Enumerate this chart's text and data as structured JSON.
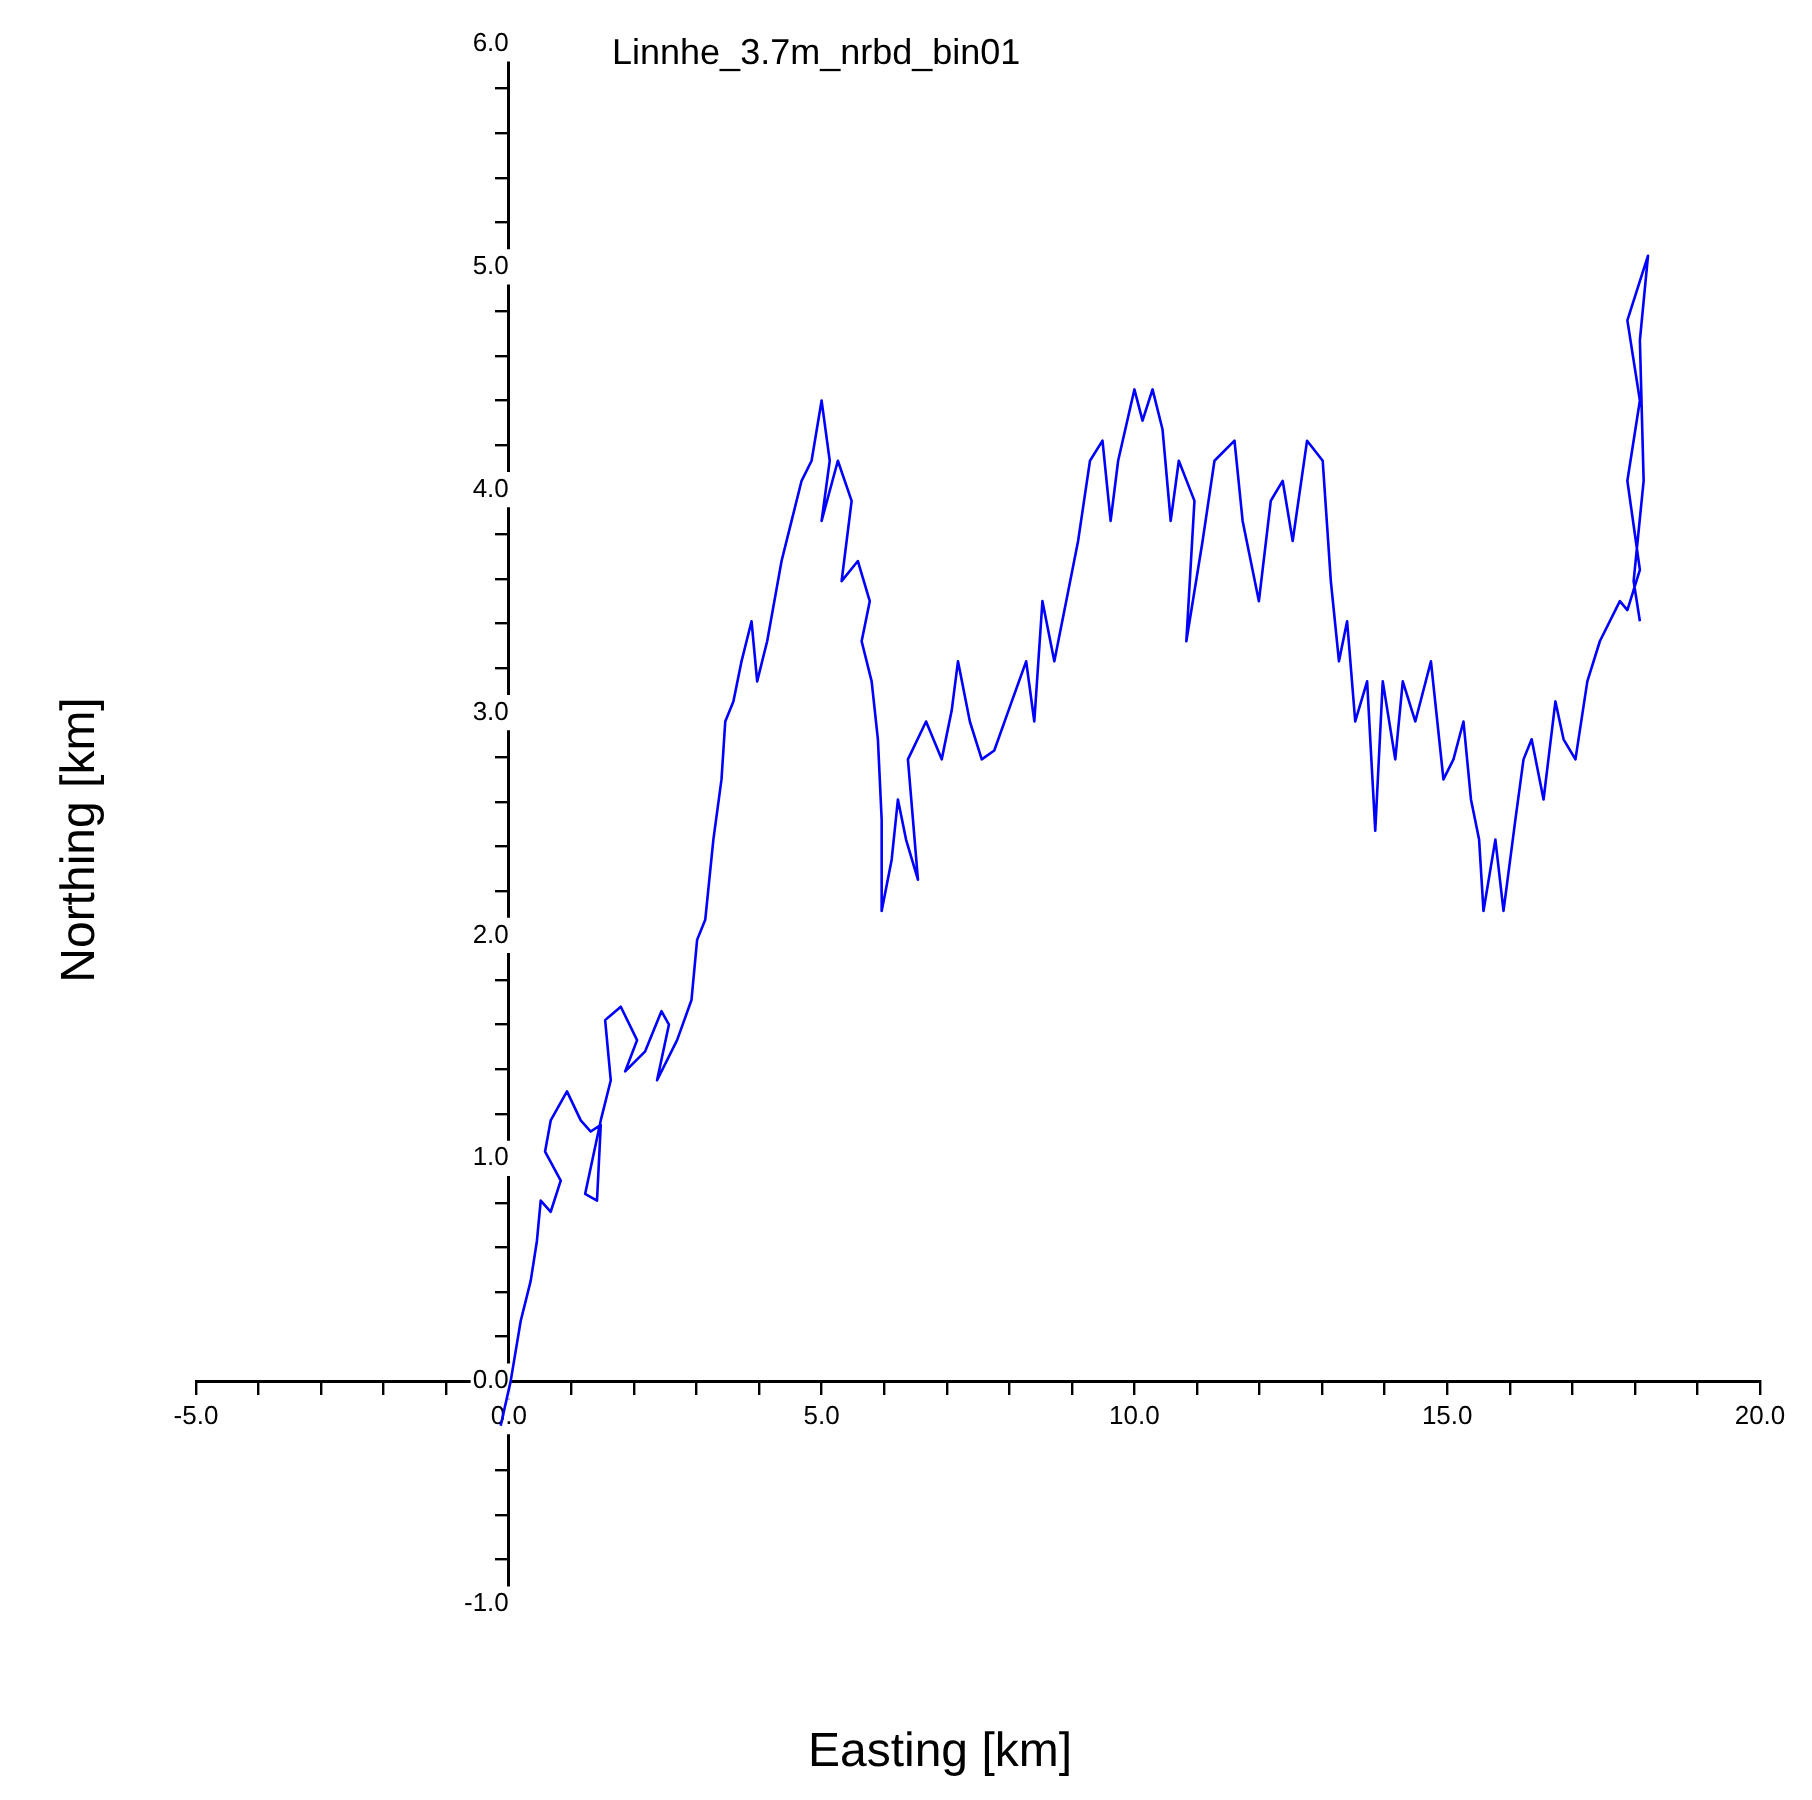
{
  "chart_data": {
    "type": "line",
    "title": "Linnhe_3.7m_nrbd_bin01",
    "xlabel": "Easting [km]",
    "ylabel": "Northing [km]",
    "color": "#0000ff",
    "marker": "none",
    "grid": false,
    "legend": false,
    "xlim": [
      -5,
      20
    ],
    "ylim": [
      -1,
      6
    ],
    "xticks": [
      {
        "value": -5,
        "label": "-5.0"
      },
      {
        "value": -4,
        "label": null
      },
      {
        "value": -3,
        "label": null
      },
      {
        "value": -2,
        "label": null
      },
      {
        "value": -1,
        "label": null
      },
      {
        "value": 0,
        "label": "0.0"
      },
      {
        "value": 1,
        "label": null
      },
      {
        "value": 2,
        "label": null
      },
      {
        "value": 3,
        "label": null
      },
      {
        "value": 4,
        "label": null
      },
      {
        "value": 5,
        "label": "5.0"
      },
      {
        "value": 6,
        "label": null
      },
      {
        "value": 7,
        "label": null
      },
      {
        "value": 8,
        "label": null
      },
      {
        "value": 9,
        "label": null
      },
      {
        "value": 10,
        "label": "10.0"
      },
      {
        "value": 11,
        "label": null
      },
      {
        "value": 12,
        "label": null
      },
      {
        "value": 13,
        "label": null
      },
      {
        "value": 14,
        "label": null
      },
      {
        "value": 15,
        "label": "15.0"
      },
      {
        "value": 16,
        "label": null
      },
      {
        "value": 17,
        "label": null
      },
      {
        "value": 18,
        "label": null
      },
      {
        "value": 19,
        "label": null
      },
      {
        "value": 20,
        "label": "20.0"
      }
    ],
    "yticks": [
      {
        "value": -1,
        "label": "-1.0"
      },
      {
        "value": -0.8,
        "label": null
      },
      {
        "value": -0.6,
        "label": null
      },
      {
        "value": -0.4,
        "label": null
      },
      {
        "value": -0.2,
        "label": null
      },
      {
        "value": 0,
        "label": "0.0"
      },
      {
        "value": 0.2,
        "label": null
      },
      {
        "value": 0.4,
        "label": null
      },
      {
        "value": 0.6,
        "label": null
      },
      {
        "value": 0.8,
        "label": null
      },
      {
        "value": 1,
        "label": "1.0"
      },
      {
        "value": 1.2,
        "label": null
      },
      {
        "value": 1.4,
        "label": null
      },
      {
        "value": 1.6,
        "label": null
      },
      {
        "value": 1.8,
        "label": null
      },
      {
        "value": 2,
        "label": "2.0"
      },
      {
        "value": 2.2,
        "label": null
      },
      {
        "value": 2.4,
        "label": null
      },
      {
        "value": 2.6,
        "label": null
      },
      {
        "value": 2.8,
        "label": null
      },
      {
        "value": 3,
        "label": "3.0"
      },
      {
        "value": 3.2,
        "label": null
      },
      {
        "value": 3.4,
        "label": null
      },
      {
        "value": 3.6,
        "label": null
      },
      {
        "value": 3.8,
        "label": null
      },
      {
        "value": 4,
        "label": "4.0"
      },
      {
        "value": 4.2,
        "label": null
      },
      {
        "value": 4.4,
        "label": null
      },
      {
        "value": 4.6,
        "label": null
      },
      {
        "value": 4.8,
        "label": null
      },
      {
        "value": 5,
        "label": "5.0"
      },
      {
        "value": 5.2,
        "label": null
      },
      {
        "value": 5.4,
        "label": null
      },
      {
        "value": 5.6,
        "label": null
      },
      {
        "value": 5.8,
        "label": null
      },
      {
        "value": 6,
        "label": "6.0"
      }
    ],
    "x": [
      -0.13,
      0.03,
      0.19,
      0.35,
      0.45,
      0.51,
      0.67,
      0.83,
      0.58,
      0.67,
      0.93,
      1.15,
      1.31,
      1.47,
      1.41,
      1.22,
      1.47,
      1.63,
      1.54,
      1.79,
      2.05,
      1.86,
      2.18,
      2.44,
      2.56,
      2.37,
      2.69,
      2.92,
      3.01,
      3.14,
      3.27,
      3.4,
      3.46,
      3.59,
      3.72,
      3.88,
      3.97,
      4.13,
      4.36,
      4.52,
      4.68,
      4.84,
      5.0,
      5.13,
      5.0,
      5.26,
      5.48,
      5.32,
      5.58,
      5.77,
      5.64,
      5.8,
      5.9,
      5.96,
      5.96,
      6.12,
      6.22,
      6.35,
      6.54,
      6.38,
      6.67,
      6.92,
      7.08,
      7.18,
      7.37,
      7.56,
      7.76,
      8.04,
      8.27,
      8.4,
      8.53,
      8.72,
      8.91,
      9.1,
      9.29,
      9.49,
      9.62,
      9.74,
      10.0,
      10.13,
      10.29,
      10.45,
      10.58,
      10.71,
      10.96,
      10.83,
      11.09,
      11.28,
      11.6,
      11.73,
      11.99,
      12.18,
      12.37,
      12.53,
      12.76,
      13.01,
      13.14,
      13.27,
      13.4,
      13.53,
      13.72,
      13.85,
      13.97,
      14.17,
      14.29,
      14.49,
      14.74,
      14.94,
      15.1,
      15.26,
      15.38,
      15.51,
      15.58,
      15.77,
      15.9,
      16.09,
      16.22,
      16.35,
      16.54,
      16.73,
      16.86,
      17.05,
      17.24,
      17.44,
      17.76,
      17.88,
      18.08,
      17.88,
      18.08,
      17.88,
      18.21,
      18.08,
      18.14,
      17.98,
      18.08
    ],
    "values": [
      -0.2,
      0.0,
      0.27,
      0.45,
      0.63,
      0.81,
      0.76,
      0.9,
      1.03,
      1.17,
      1.3,
      1.17,
      1.12,
      1.15,
      0.81,
      0.84,
      1.17,
      1.35,
      1.62,
      1.68,
      1.53,
      1.39,
      1.48,
      1.66,
      1.6,
      1.35,
      1.53,
      1.71,
      1.98,
      2.07,
      2.43,
      2.7,
      2.96,
      3.05,
      3.23,
      3.41,
      3.14,
      3.32,
      3.68,
      3.86,
      4.04,
      4.13,
      4.4,
      4.13,
      3.86,
      4.13,
      3.95,
      3.59,
      3.68,
      3.5,
      3.32,
      3.14,
      2.88,
      2.52,
      2.11,
      2.34,
      2.61,
      2.43,
      2.25,
      2.79,
      2.96,
      2.79,
      3.01,
      3.23,
      2.96,
      2.79,
      2.83,
      3.05,
      3.23,
      2.96,
      3.5,
      3.23,
      3.5,
      3.77,
      4.13,
      4.22,
      3.86,
      4.13,
      4.45,
      4.31,
      4.45,
      4.27,
      3.86,
      4.13,
      3.95,
      3.32,
      3.77,
      4.13,
      4.22,
      3.86,
      3.5,
      3.95,
      4.04,
      3.77,
      4.22,
      4.13,
      3.59,
      3.23,
      3.41,
      2.96,
      3.14,
      2.47,
      3.14,
      2.79,
      3.14,
      2.96,
      3.23,
      2.7,
      2.79,
      2.96,
      2.61,
      2.43,
      2.11,
      2.43,
      2.11,
      2.52,
      2.79,
      2.88,
      2.61,
      3.05,
      2.88,
      2.79,
      3.14,
      3.32,
      3.5,
      3.46,
      3.64,
      4.04,
      4.4,
      4.76,
      5.05,
      4.67,
      4.04,
      3.59,
      3.41
    ]
  }
}
